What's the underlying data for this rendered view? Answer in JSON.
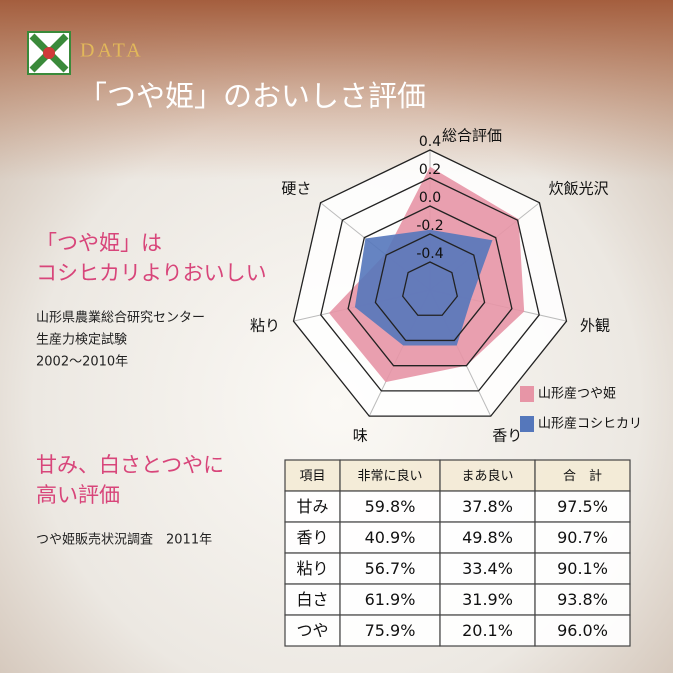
{
  "header": {
    "label": "DATA",
    "title": "「つや姫」のおいしさ評価"
  },
  "claim1": {
    "heading": [
      "「つや姫」は",
      "コシヒカリよりおいしい"
    ],
    "source": [
      "山形県農業総合研究センター",
      "生産力検定試験",
      "2002〜2010年"
    ]
  },
  "claim2": {
    "heading": [
      "甘み、白さとつやに",
      "高い評価"
    ],
    "source": [
      "つや姫販売状況調査　2011年"
    ]
  },
  "chart_data": {
    "type": "radar",
    "categories": [
      "総合評価",
      "炊飯光沢",
      "外観",
      "香り",
      "味",
      "粘り",
      "硬さ"
    ],
    "ylim": [
      -0.6,
      0.4
    ],
    "yticks": [
      {
        "value": 0.4,
        "label": "0.4"
      },
      {
        "value": 0.2,
        "label": "0.2"
      },
      {
        "value": 0,
        "label": "0.0"
      },
      {
        "value": -0.2,
        "label": "-0.2"
      },
      {
        "value": -0.4,
        "label": "-0.4"
      }
    ],
    "legend": "bottom-right",
    "series": [
      {
        "name": "山形産つや姫",
        "color": "#e795a6",
        "values": [
          0.28,
          0.21,
          0.09,
          0.0,
          0.13,
          0.14,
          -0.19
        ]
      },
      {
        "name": "山形産コシヒカリ",
        "color": "#5577bb",
        "values": [
          -0.17,
          -0.03,
          -0.3,
          -0.16,
          -0.16,
          -0.05,
          -0.01
        ]
      }
    ]
  },
  "table": {
    "header": [
      "項目",
      "非常に良い",
      "まあ良い",
      "合　計"
    ],
    "rows": [
      [
        "甘み",
        "59.8%",
        "37.8%",
        "97.5%"
      ],
      [
        "香り",
        "40.9%",
        "49.8%",
        "90.7%"
      ],
      [
        "粘り",
        "56.7%",
        "33.4%",
        "90.1%"
      ],
      [
        "白さ",
        "61.9%",
        "31.9%",
        "93.8%"
      ],
      [
        "つや",
        "75.9%",
        "20.1%",
        "96.0%"
      ]
    ]
  }
}
